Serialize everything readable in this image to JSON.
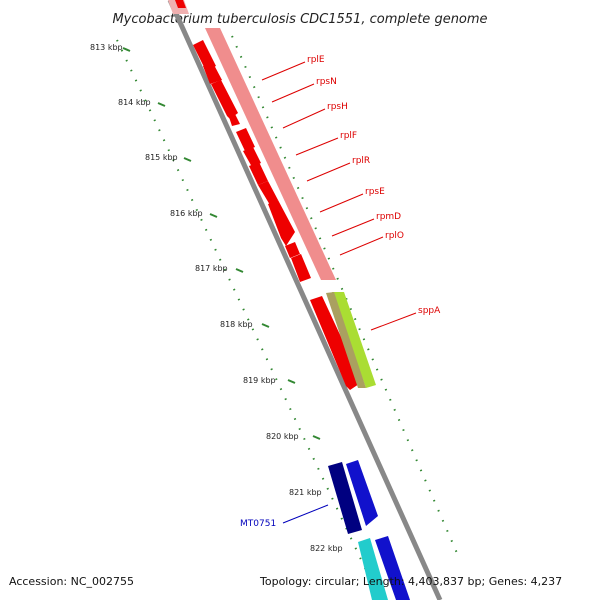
{
  "map": {
    "title": "Mycobacterium tuberculosis CDC1551, complete genome",
    "accession": "Accession: NC_002755",
    "topology": "Topology: circular; Length: 4,403,837 bp; Genes: 4,237"
  },
  "ticks": [
    "813 kbp",
    "814 kbp",
    "815 kbp",
    "816 kbp",
    "817 kbp",
    "818 kbp",
    "819 kbp",
    "820 kbp",
    "821 kbp",
    "822 kbp"
  ],
  "genes": [
    {
      "name": "rplE",
      "color": "#dd0000"
    },
    {
      "name": "rpsN",
      "color": "#dd0000"
    },
    {
      "name": "rpsH",
      "color": "#dd0000"
    },
    {
      "name": "rplF",
      "color": "#dd0000"
    },
    {
      "name": "rplR",
      "color": "#dd0000"
    },
    {
      "name": "rpsE",
      "color": "#dd0000"
    },
    {
      "name": "rpmD",
      "color": "#dd0000"
    },
    {
      "name": "rplO",
      "color": "#dd0000"
    },
    {
      "name": "sppA",
      "color": "#dd0000"
    },
    {
      "name": "MT0751",
      "color": "#0000bb"
    }
  ],
  "colors": {
    "cds": "#ee0000",
    "gene_track": "#f08d8d",
    "backbone": "#888888",
    "tick": "#338833",
    "sppa_feature": "#aadd33",
    "blue_cds": "#1111cc",
    "navy_cds": "#000080",
    "cyan_cds": "#22cccc"
  }
}
